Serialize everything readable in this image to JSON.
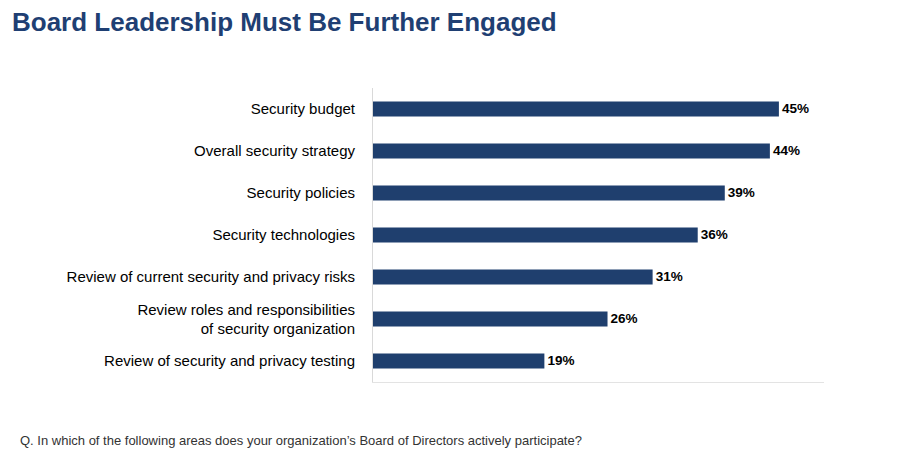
{
  "chart_data": {
    "type": "bar",
    "orientation": "horizontal",
    "title": "Board Leadership Must Be Further Engaged",
    "categories": [
      "Security budget",
      "Overall security strategy",
      "Security policies",
      "Security technologies",
      "Review of current security and privacy risks",
      "Review roles and responsibilities of security organization",
      "Review of security and privacy testing"
    ],
    "values": [
      45,
      44,
      39,
      36,
      31,
      26,
      19
    ],
    "value_labels": [
      "45%",
      "44%",
      "39%",
      "36%",
      "31%",
      "26%",
      "19%"
    ],
    "data_labels": true,
    "color": "#1f3f6e",
    "xlim": [
      0,
      50
    ],
    "grid": false,
    "tick_labels": "y",
    "annotations": [
      "Q. In which of the following areas does your organization’s Board of Directors actively participate?"
    ]
  }
}
